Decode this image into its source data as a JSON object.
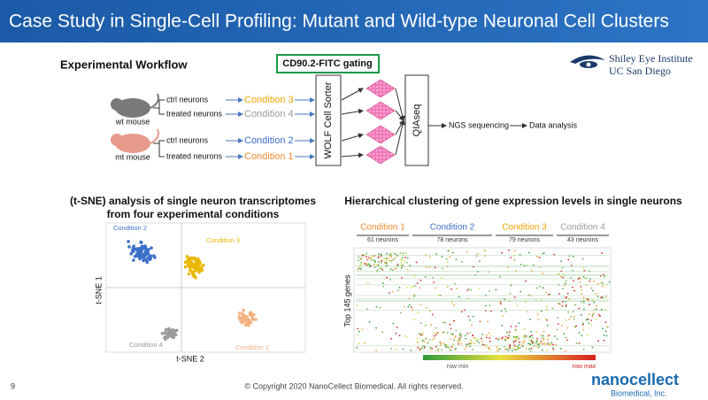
{
  "header": {
    "title": "Case Study in Single-Cell Profiling: Mutant and Wild-type Neuronal Cell Clusters"
  },
  "logo": {
    "line1": "Shiley Eye Institute",
    "line2": "UC San Diego"
  },
  "workflow": {
    "title": "Experimental Workflow",
    "gating": "CD90.2-FITC gating",
    "sorter": "WOLF Cell Sorter",
    "qiaseq": "QIAseq",
    "ngs": "NGS sequencing",
    "analysis": "Data analysis",
    "mice": [
      {
        "label": "wt mouse",
        "rows": [
          {
            "neurons": "ctrl neurons",
            "condition": "Condition 3"
          },
          {
            "neurons": "treated neurons",
            "condition": "Condition 4"
          }
        ]
      },
      {
        "label": "mt mouse",
        "rows": [
          {
            "neurons": "ctrl neurons",
            "condition": "Condition 2"
          },
          {
            "neurons": "treated neurons",
            "condition": "Condition 1"
          }
        ]
      }
    ]
  },
  "tsne": {
    "title": "(t-SNE) analysis of single neuron transcriptomes",
    "subtitle": "from four experimental conditions",
    "x_label": "t-SNE 2",
    "y_label": "t-SNE 1",
    "clusters": [
      "Condition 2",
      "Condition 3",
      "Condition 4",
      "Condition 1"
    ]
  },
  "heatmap": {
    "title": "Hierarchical clustering of gene expression levels in single neurons",
    "groups": [
      {
        "label": "Condition 1",
        "count": "61 neurons"
      },
      {
        "label": "Condition 2",
        "count": "78 neurons"
      },
      {
        "label": "Condition 3",
        "count": "79 neurons"
      },
      {
        "label": "Condition 4",
        "count": "43 neurons"
      }
    ],
    "y_label": "Top 145 genes",
    "scale_min": "row min",
    "scale_max": "row max"
  },
  "footer": {
    "page": "9",
    "copyright": "© Copyright 2020 NanoCellect Biomedical. All rights reserved.",
    "brand": "nanocellect",
    "brand_sub": "Biomedical, Inc."
  }
}
